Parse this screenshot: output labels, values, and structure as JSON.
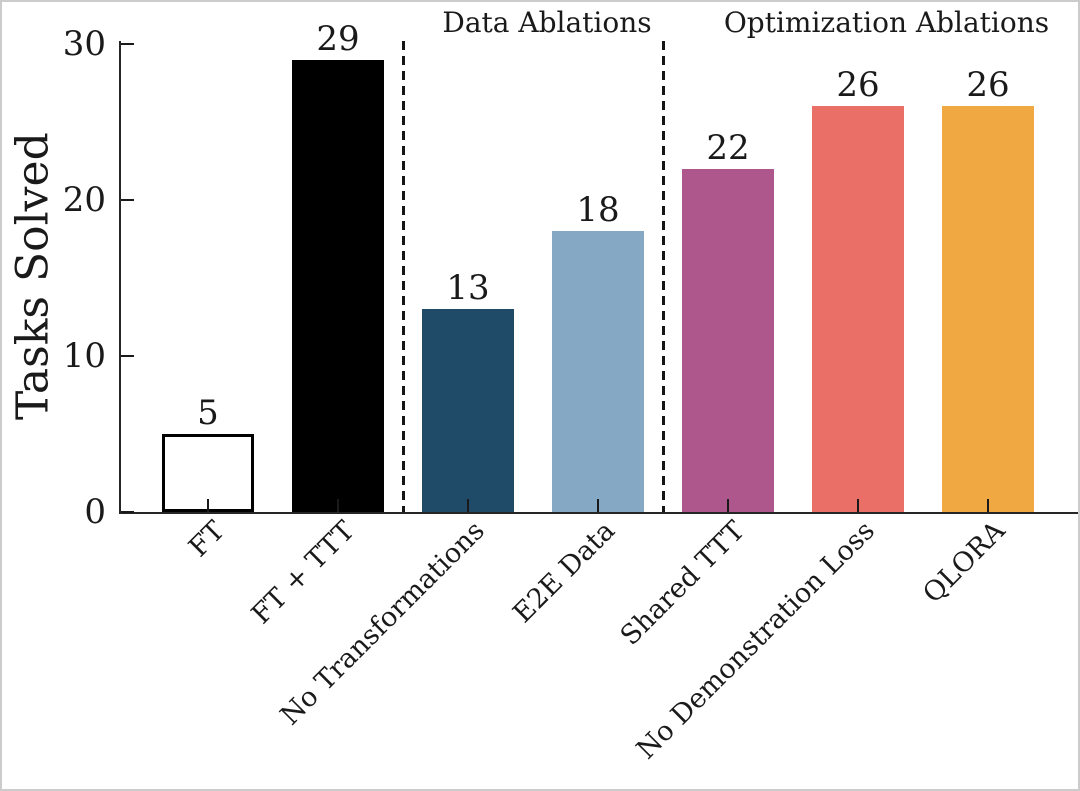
{
  "figure": {
    "background": "#ffffff",
    "frame_border_color": "#cccccc",
    "axis_color": "#262626",
    "text_color": "#1a1a1a"
  },
  "chart_data": {
    "type": "bar",
    "title": "",
    "xlabel": "",
    "ylabel": "Tasks Solved",
    "ylim": [
      0,
      30
    ],
    "yticks": [
      0,
      10,
      20,
      30
    ],
    "grid": false,
    "legend": "none",
    "categories": [
      "FT",
      "FT + TTT",
      "No Transformations",
      "E2E Data",
      "Shared TTT",
      "No Demonstration Loss",
      "QLORA"
    ],
    "values": [
      5,
      29,
      13,
      18,
      22,
      26,
      26
    ],
    "bar_fill_colors": [
      "#ffffff",
      "#000000",
      "#1f4a68",
      "#85a8c4",
      "#ad578c",
      "#ea6f67",
      "#f0a942"
    ],
    "bar_edge_colors": [
      "#000000",
      "#000000",
      "none",
      "none",
      "none",
      "none",
      "none"
    ],
    "separators_after_index": [
      1,
      3
    ],
    "sections": [
      {
        "label": "Data Ablations",
        "start_index": 2,
        "end_index": 3
      },
      {
        "label": "Optimization Ablations",
        "start_index": 4,
        "end_index": 6
      }
    ]
  }
}
